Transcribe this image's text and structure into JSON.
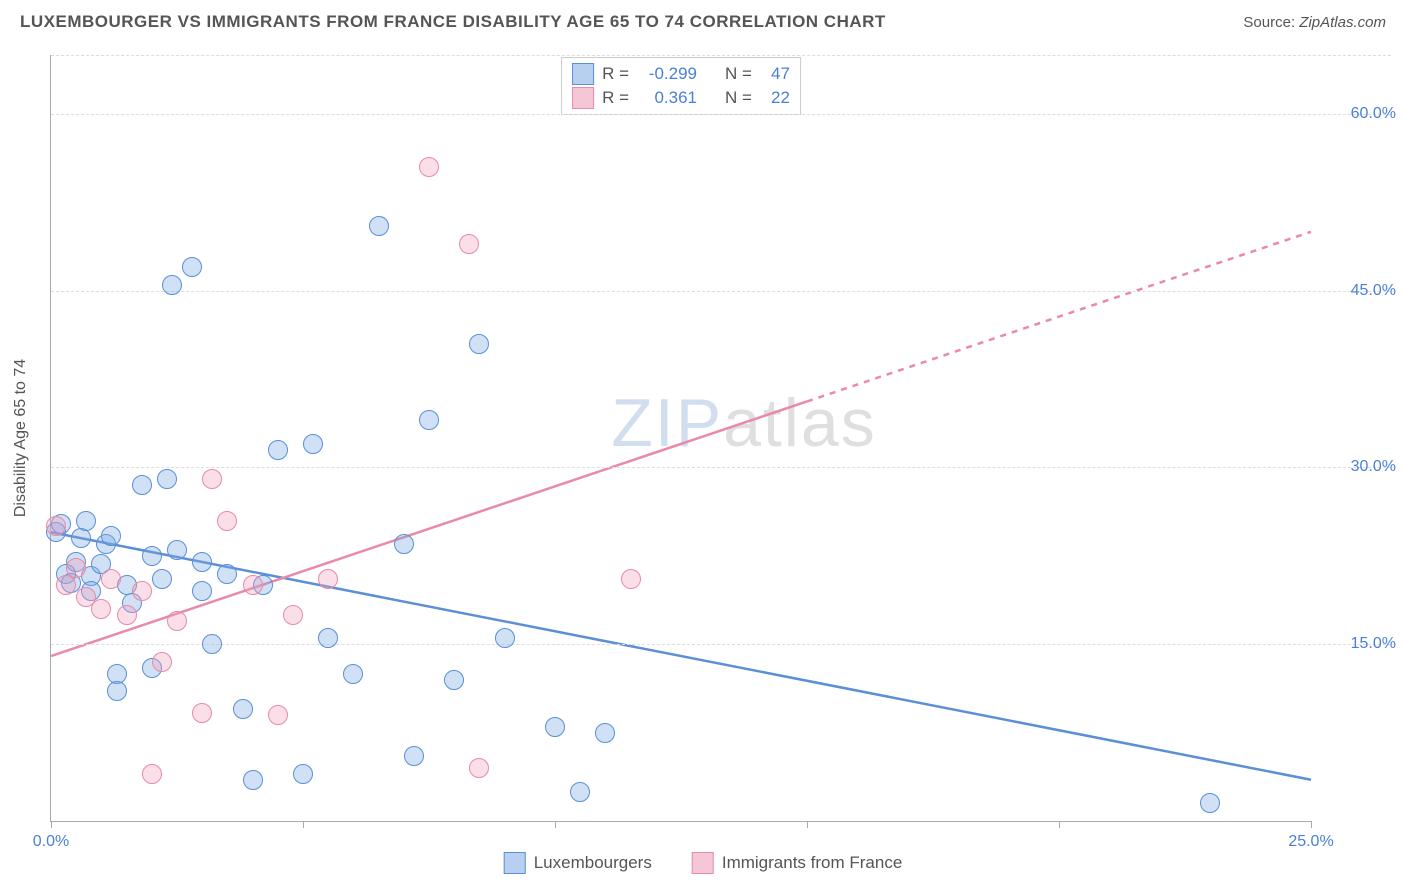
{
  "header": {
    "title": "LUXEMBOURGER VS IMMIGRANTS FROM FRANCE DISABILITY AGE 65 TO 74 CORRELATION CHART",
    "source_label": "Source:",
    "source_value": "ZipAtlas.com"
  },
  "chart": {
    "type": "scatter",
    "ylabel": "Disability Age 65 to 74",
    "watermark_a": "ZIP",
    "watermark_b": "atlas",
    "xlim": [
      0,
      25
    ],
    "ylim": [
      0,
      65
    ],
    "xticks": [
      0,
      5,
      10,
      15,
      20,
      25
    ],
    "xtick_labels": [
      "0.0%",
      "",
      "",
      "",
      "",
      "25.0%"
    ],
    "yticks": [
      15,
      30,
      45,
      60
    ],
    "ytick_labels": [
      "15.0%",
      "30.0%",
      "45.0%",
      "60.0%"
    ],
    "grid_color": "#dddddd",
    "axis_color": "#aaaaaa",
    "background_color": "#ffffff",
    "tick_label_color": "#4a7fd8",
    "marker_radius": 10,
    "series": [
      {
        "name": "Luxembourgers",
        "color_fill": "rgba(120,170,230,0.35)",
        "color_stroke": "#5b8fd6",
        "swatch_fill": "#b7d0ef",
        "swatch_stroke": "#5b8fd6",
        "R": "-0.299",
        "N": "47",
        "regression": {
          "x1": 0,
          "y1": 24.5,
          "x2": 25,
          "y2": 3.5,
          "solid_until_x": 25
        },
        "points": [
          [
            0.1,
            24.5
          ],
          [
            0.2,
            25.2
          ],
          [
            0.3,
            21.0
          ],
          [
            0.4,
            20.2
          ],
          [
            0.5,
            22.0
          ],
          [
            0.6,
            24.0
          ],
          [
            0.7,
            25.5
          ],
          [
            0.8,
            20.8
          ],
          [
            0.8,
            19.5
          ],
          [
            1.0,
            21.8
          ],
          [
            1.1,
            23.5
          ],
          [
            1.2,
            24.2
          ],
          [
            1.3,
            12.5
          ],
          [
            1.3,
            11.0
          ],
          [
            1.5,
            20.0
          ],
          [
            1.6,
            18.5
          ],
          [
            1.8,
            28.5
          ],
          [
            2.0,
            22.5
          ],
          [
            2.0,
            13.0
          ],
          [
            2.2,
            20.5
          ],
          [
            2.3,
            29.0
          ],
          [
            2.4,
            45.5
          ],
          [
            2.5,
            23.0
          ],
          [
            2.8,
            47.0
          ],
          [
            3.0,
            19.5
          ],
          [
            3.0,
            22.0
          ],
          [
            3.2,
            15.0
          ],
          [
            3.5,
            21.0
          ],
          [
            3.8,
            9.5
          ],
          [
            4.0,
            3.5
          ],
          [
            4.2,
            20.0
          ],
          [
            4.5,
            31.5
          ],
          [
            5.0,
            4.0
          ],
          [
            5.2,
            32.0
          ],
          [
            5.5,
            15.5
          ],
          [
            6.0,
            12.5
          ],
          [
            6.5,
            50.5
          ],
          [
            7.0,
            23.5
          ],
          [
            7.2,
            5.5
          ],
          [
            7.5,
            34.0
          ],
          [
            8.0,
            12.0
          ],
          [
            8.5,
            40.5
          ],
          [
            9.0,
            15.5
          ],
          [
            10.0,
            8.0
          ],
          [
            10.5,
            2.5
          ],
          [
            11.0,
            7.5
          ],
          [
            23.0,
            1.5
          ]
        ]
      },
      {
        "name": "Immigrants from France",
        "color_fill": "rgba(240,160,190,0.35)",
        "color_stroke": "#e88aa8",
        "swatch_fill": "#f5c6d5",
        "swatch_stroke": "#e88aa8",
        "R": "0.361",
        "N": "22",
        "regression": {
          "x1": 0,
          "y1": 14.0,
          "x2": 25,
          "y2": 50.0,
          "solid_until_x": 15
        },
        "points": [
          [
            0.1,
            25.0
          ],
          [
            0.3,
            20.0
          ],
          [
            0.5,
            21.5
          ],
          [
            0.7,
            19.0
          ],
          [
            1.0,
            18.0
          ],
          [
            1.2,
            20.5
          ],
          [
            1.5,
            17.5
          ],
          [
            1.8,
            19.5
          ],
          [
            2.0,
            4.0
          ],
          [
            2.2,
            13.5
          ],
          [
            2.5,
            17.0
          ],
          [
            3.0,
            9.2
          ],
          [
            3.2,
            29.0
          ],
          [
            3.5,
            25.5
          ],
          [
            4.0,
            20.0
          ],
          [
            4.5,
            9.0
          ],
          [
            4.8,
            17.5
          ],
          [
            5.5,
            20.5
          ],
          [
            7.5,
            55.5
          ],
          [
            8.3,
            49.0
          ],
          [
            8.5,
            4.5
          ],
          [
            11.5,
            20.5
          ]
        ]
      }
    ]
  },
  "legend": {
    "r_label": "R =",
    "n_label": "N ="
  }
}
